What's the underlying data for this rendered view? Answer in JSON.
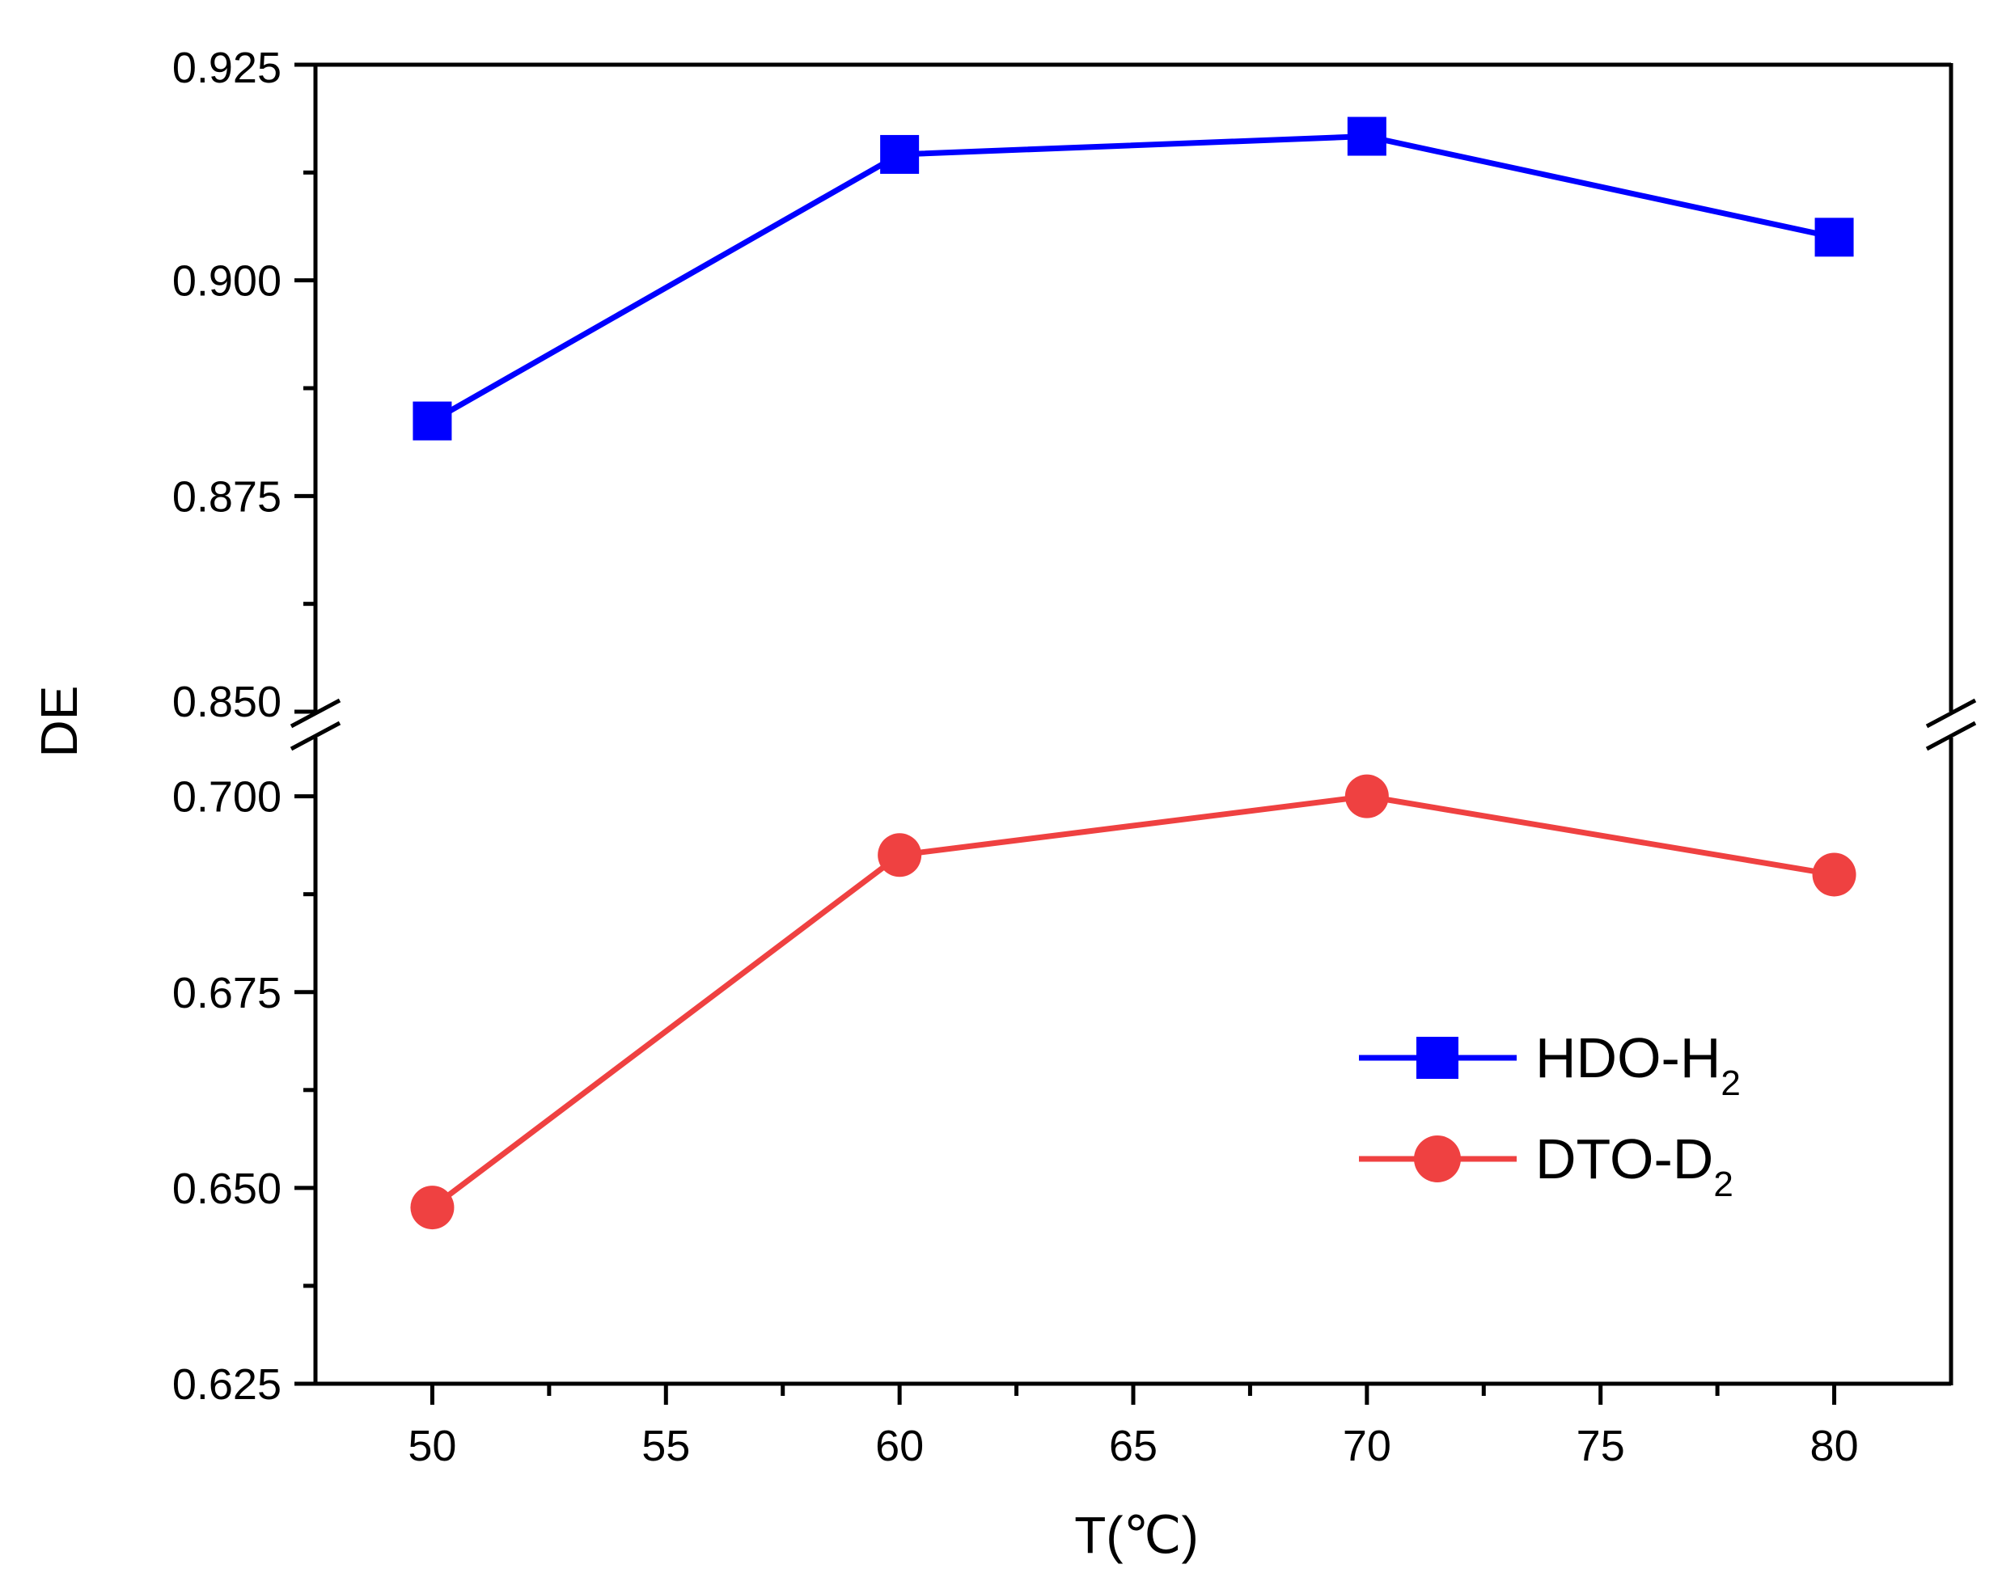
{
  "chart_data": {
    "type": "line",
    "title": "",
    "xlabel": "T(℃)",
    "ylabel": "DE",
    "xlim": [
      47.5,
      82.5
    ],
    "x_major_ticks": [
      50,
      55,
      60,
      65,
      70,
      75,
      80
    ],
    "x_tick_labels": [
      "50",
      "55",
      "60",
      "65",
      "70",
      "75",
      "80"
    ],
    "x_minor_ticks": [
      52.5,
      57.5,
      62.5,
      67.5,
      72.5,
      77.5
    ],
    "y_axis_break": {
      "upper_segment": {
        "ylim": [
          0.85,
          0.925
        ],
        "major_ticks": [
          0.85,
          0.875,
          0.9,
          0.925
        ],
        "tick_labels": [
          "0.850",
          "0.875",
          "0.900",
          "0.925"
        ],
        "minor_ticks": [
          0.8625,
          0.8875,
          0.9125
        ]
      },
      "lower_segment": {
        "ylim": [
          0.625,
          0.7075
        ],
        "major_ticks": [
          0.625,
          0.65,
          0.675,
          0.7
        ],
        "tick_labels": [
          "0.625",
          "0.650",
          "0.675",
          "0.700"
        ],
        "minor_ticks": [
          0.6375,
          0.6625,
          0.6875
        ]
      }
    },
    "x": [
      50,
      60,
      70,
      80
    ],
    "series": [
      {
        "name": "HDO-H",
        "name_subscript": "2",
        "segment": "upper_segment",
        "marker": "square",
        "color": "#0000ff",
        "values": [
          0.8837,
          0.9146,
          0.9167,
          0.905
        ]
      },
      {
        "name": "DTO-D",
        "name_subscript": "2",
        "segment": "lower_segment",
        "marker": "circle",
        "color": "#ef4141",
        "values": [
          0.6475,
          0.6925,
          0.7,
          0.69
        ]
      }
    ],
    "grid": false,
    "legend_position": "lower-right"
  }
}
